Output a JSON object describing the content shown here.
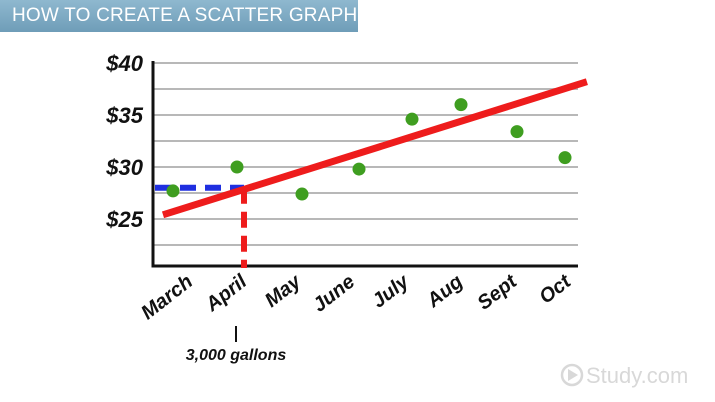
{
  "header": {
    "title": "HOW TO CREATE A SCATTER GRAPH"
  },
  "annotation": {
    "label": "3,000 gallons",
    "category": "April",
    "value": 28
  },
  "watermark": {
    "text": "Study.com"
  },
  "colors": {
    "points": "#3f9e20",
    "trendline": "#ee1c1c",
    "guide_horizontal": "#1f2fe0",
    "guide_vertical": "#ee1c1c",
    "grid": "#b8b8b8",
    "banner": "#7ea9c3"
  },
  "chart_data": {
    "type": "scatter",
    "title": "",
    "xlabel": "",
    "ylabel": "",
    "categories": [
      "March",
      "April",
      "May",
      "June",
      "July",
      "Aug",
      "Sept",
      "Oct"
    ],
    "values": [
      27.7,
      30,
      27.4,
      29.8,
      34.6,
      36,
      33.4,
      30.9
    ],
    "ytick_values": [
      25,
      30,
      35,
      40
    ],
    "ytick_labels": [
      "$25",
      "$30",
      "$35",
      "$40"
    ],
    "ylim": [
      20.5,
      40
    ],
    "grid": true,
    "gridline_step": 2.5,
    "trendline": {
      "start": {
        "x": -0.5,
        "y": 25.4
      },
      "end": {
        "x": 7.35,
        "y": 38.2
      }
    }
  }
}
